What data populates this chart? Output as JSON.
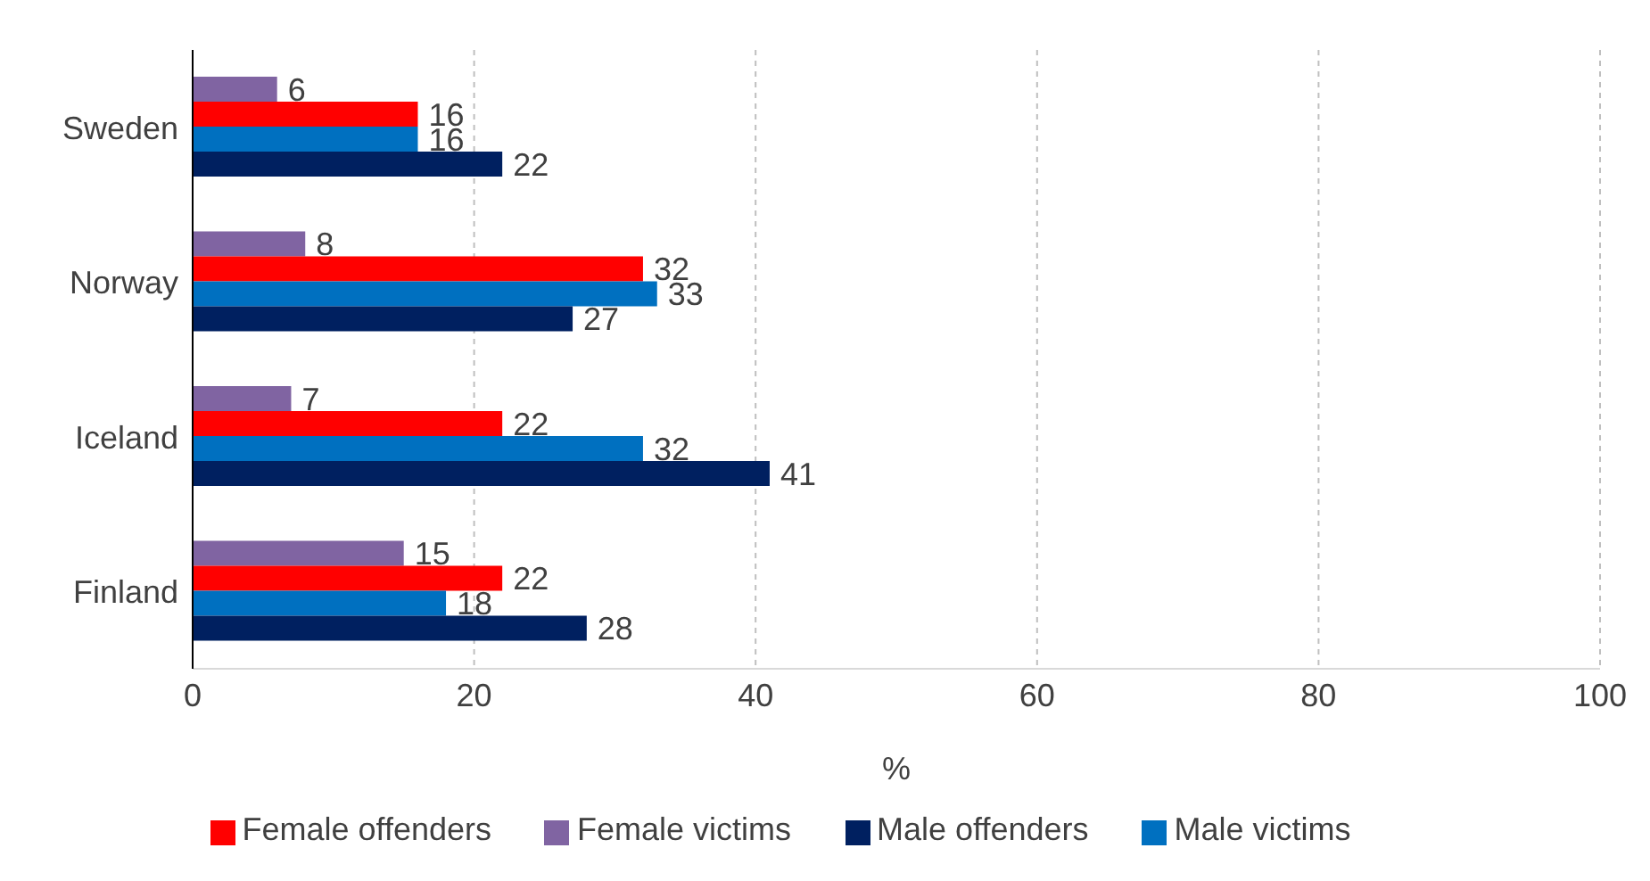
{
  "chart_data": {
    "type": "bar",
    "orientation": "horizontal",
    "xlabel": "%",
    "categories": [
      "Sweden",
      "Norway",
      "Iceland",
      "Finland"
    ],
    "series": [
      {
        "name": "Female victims",
        "color": "#8064a2",
        "values": [
          6,
          8,
          7,
          15
        ]
      },
      {
        "name": "Female offenders",
        "color": "#ff0000",
        "values": [
          16,
          32,
          22,
          22
        ]
      },
      {
        "name": "Male victims",
        "color": "#0070c0",
        "values": [
          16,
          33,
          32,
          18
        ]
      },
      {
        "name": "Male offenders",
        "color": "#002060",
        "values": [
          22,
          27,
          41,
          28
        ]
      }
    ],
    "xlim": [
      0,
      100
    ],
    "xticks": [
      0,
      20,
      40,
      60,
      80,
      100
    ],
    "grid": "x",
    "legend": "bottom",
    "data_labels": true
  }
}
